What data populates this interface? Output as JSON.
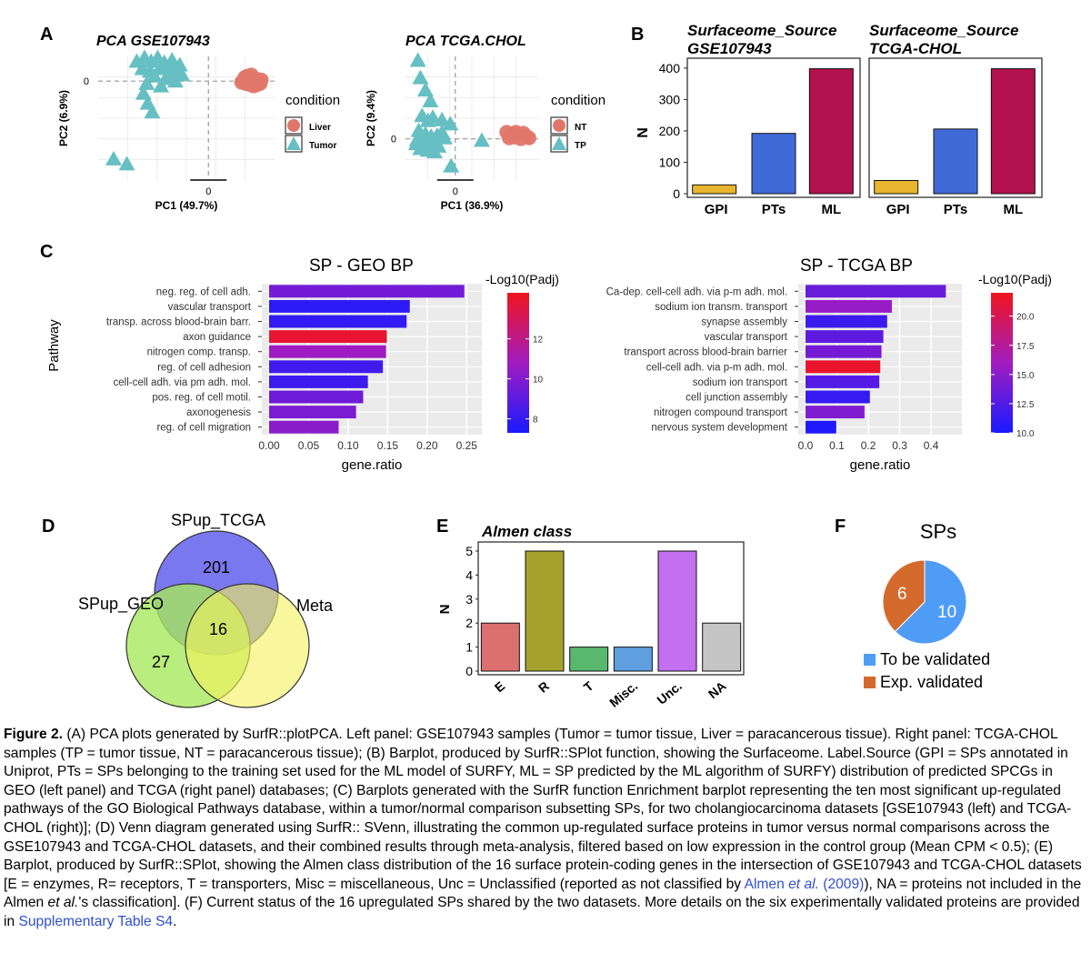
{
  "figure": {
    "panel_labels": [
      "A",
      "B",
      "C",
      "D",
      "E",
      "F"
    ]
  },
  "colors": {
    "liver": "#e0766a",
    "tumor": "#66bfc2",
    "gpi": "#e7b52e",
    "pts": "#3f6ad8",
    "ml": "#b3114e",
    "venn_tcga": "#7a78ee",
    "venn_geo": "#a7e85c",
    "venn_meta": "#f4f15c",
    "alm_e": "#dd6f6f",
    "alm_r": "#a5a12c",
    "alm_t": "#59b86e",
    "alm_misc": "#5f9fe0",
    "alm_unc": "#c46ef0",
    "alm_na": "#c5c5c5",
    "pie_tbv": "#4f9cf6",
    "pie_exp": "#d4692c"
  },
  "chart_data": [
    {
      "id": "pca_geo",
      "type": "scatter",
      "title": "PCA GSE107943",
      "xlabel": "PC1 (49.7%)",
      "ylabel": "PC2 (6.9%)",
      "xticks": [
        "0"
      ],
      "yticks": [
        "0"
      ],
      "xlim": [
        -10,
        6
      ],
      "ylim": [
        -8,
        2
      ],
      "legend_title": "condition",
      "series": [
        {
          "name": "Liver",
          "marker": "circle",
          "points": [
            [
              3.2,
              0.1
            ],
            [
              3.6,
              0.3
            ],
            [
              4.0,
              0.0
            ],
            [
              3.4,
              -0.2
            ],
            [
              3.8,
              -0.3
            ],
            [
              4.3,
              0.2
            ],
            [
              4.6,
              -0.1
            ],
            [
              3.0,
              -0.1
            ],
            [
              4.8,
              0.1
            ],
            [
              3.5,
              0.4
            ],
            [
              4.1,
              -0.4
            ],
            [
              3.9,
              0.5
            ],
            [
              4.4,
              -0.3
            ],
            [
              3.3,
              0.3
            ],
            [
              4.7,
              -0.2
            ]
          ]
        },
        {
          "name": "Tumor",
          "marker": "triangle",
          "points": [
            [
              -6.5,
              1.6
            ],
            [
              -5.8,
              1.9
            ],
            [
              -5.2,
              1.6
            ],
            [
              -4.6,
              1.9
            ],
            [
              -4.0,
              1.5
            ],
            [
              -3.3,
              1.7
            ],
            [
              -6.0,
              1.0
            ],
            [
              -5.3,
              0.8
            ],
            [
              -4.4,
              1.0
            ],
            [
              -3.6,
              0.6
            ],
            [
              -2.9,
              0.9
            ],
            [
              -2.4,
              0.5
            ],
            [
              -4.9,
              0.4
            ],
            [
              -3.9,
              0.2
            ],
            [
              -3.0,
              0.0
            ],
            [
              -5.6,
              -0.2
            ],
            [
              -4.3,
              -0.4
            ],
            [
              -5.9,
              -1.0
            ],
            [
              -5.5,
              -1.8
            ],
            [
              -5.1,
              -2.5
            ],
            [
              -8.6,
              -6.3
            ],
            [
              -7.4,
              -6.7
            ],
            [
              -2.6,
              1.3
            ],
            [
              -3.5,
              1.2
            ]
          ]
        }
      ]
    },
    {
      "id": "pca_tcga",
      "type": "scatter",
      "title": "PCA TCGA.CHOL",
      "xlabel": "PC1 (36.9%)",
      "ylabel": "PC2 (9.4%)",
      "xticks": [
        "0"
      ],
      "yticks": [
        "0"
      ],
      "xlim": [
        -6,
        10
      ],
      "ylim": [
        -5,
        10
      ],
      "legend_title": "condition",
      "series": [
        {
          "name": "NT",
          "marker": "circle",
          "points": [
            [
              6.2,
              0.8
            ],
            [
              6.8,
              0.5
            ],
            [
              7.3,
              0.8
            ],
            [
              7.8,
              0.4
            ],
            [
              8.2,
              0.7
            ],
            [
              6.5,
              0.1
            ],
            [
              7.1,
              0.2
            ],
            [
              7.9,
              0.0
            ],
            [
              8.6,
              0.3
            ],
            [
              8.9,
              0.1
            ]
          ]
        },
        {
          "name": "TP",
          "marker": "triangle",
          "points": [
            [
              -4.5,
              9.5
            ],
            [
              -4.2,
              7.4
            ],
            [
              -3.6,
              5.9
            ],
            [
              -3.0,
              4.6
            ],
            [
              -4.0,
              2.8
            ],
            [
              -3.3,
              2.2
            ],
            [
              -2.7,
              2.6
            ],
            [
              -1.6,
              2.3
            ],
            [
              -0.6,
              1.8
            ],
            [
              -4.4,
              1.0
            ],
            [
              -3.6,
              0.6
            ],
            [
              -2.9,
              0.3
            ],
            [
              -2.2,
              0.4
            ],
            [
              -1.6,
              0.8
            ],
            [
              -4.6,
              -0.1
            ],
            [
              -3.8,
              -0.5
            ],
            [
              -3.0,
              -0.7
            ],
            [
              -2.3,
              -0.4
            ],
            [
              -1.3,
              0.1
            ],
            [
              -4.2,
              -1.2
            ],
            [
              -3.3,
              -1.4
            ],
            [
              -2.5,
              -1.6
            ],
            [
              -0.5,
              -3.3
            ],
            [
              -4.7,
              -0.6
            ],
            [
              3.2,
              -0.2
            ],
            [
              -2.0,
              -0.9
            ]
          ]
        }
      ]
    },
    {
      "id": "surfaceome_geo",
      "type": "bar",
      "title": "Surfaceome_Source GSE107943",
      "title_lines": [
        "Surfaceome_Source",
        "GSE107943"
      ],
      "ylabel": "N",
      "categories": [
        "GPI",
        "PTs",
        "ML"
      ],
      "values": [
        28,
        192,
        398
      ],
      "ylim": [
        0,
        420
      ],
      "yticks": [
        0,
        100,
        200,
        300,
        400
      ]
    },
    {
      "id": "surfaceome_tcga",
      "type": "bar",
      "title": "Surfaceome_Source TCGA-CHOL",
      "title_lines": [
        "Surfaceome_Source",
        "TCGA-CHOL"
      ],
      "ylabel": "N",
      "categories": [
        "GPI",
        "PTs",
        "ML"
      ],
      "values": [
        42,
        206,
        398
      ],
      "ylim": [
        0,
        420
      ],
      "yticks": [
        0,
        100,
        200,
        300,
        400
      ]
    },
    {
      "id": "geo_bp",
      "type": "bar",
      "orientation": "horizontal",
      "title": "SP - GEO BP",
      "xlabel": "gene.ratio",
      "ylabel": "Pathway",
      "categories": [
        "neg. reg. of cell adh.",
        "vascular transport",
        "transp. across blood-brain barr.",
        "axon guidance",
        "nitrogen comp. transp.",
        "reg. of cell adhesion",
        "cell-cell adh. via pm adh. mol.",
        "pos. reg. of cell motil.",
        "axonogenesis",
        "reg. of cell migration"
      ],
      "values": [
        0.247,
        0.178,
        0.174,
        0.149,
        0.148,
        0.144,
        0.125,
        0.119,
        0.11,
        0.088
      ],
      "padj_log10": [
        9.6,
        7.8,
        7.9,
        13.9,
        10.7,
        8.3,
        8.2,
        9.5,
        9.8,
        10.2
      ],
      "xlim": [
        0,
        0.26
      ],
      "xticks": [
        "0.00",
        "0.05",
        "0.10",
        "0.15",
        "0.20",
        "0.25"
      ],
      "colorbar_title": "-Log10(Padj)",
      "colorbar_ticks": [
        "12",
        "10",
        "8"
      ],
      "colorbar_range": [
        7.3,
        14.3
      ]
    },
    {
      "id": "tcga_bp",
      "type": "bar",
      "orientation": "horizontal",
      "title": "SP - TCGA BP",
      "xlabel": "gene.ratio",
      "categories": [
        "Ca-dep. cell-cell adh. via p-m adh. mol.",
        "sodium ion transm. transport",
        "synapse assembly",
        "vascular transport",
        "transport across blood-brain barrier",
        "cell-cell adh. via p-m adh. mol.",
        "sodium ion transport",
        "cell junction assembly",
        "nitrogen compound transport",
        "nervous system development"
      ],
      "values": [
        0.447,
        0.275,
        0.26,
        0.248,
        0.242,
        0.238,
        0.235,
        0.205,
        0.188,
        0.098
      ],
      "padj_log10": [
        13.5,
        15.5,
        11.5,
        13.0,
        14.0,
        21.5,
        12.5,
        11.2,
        14.5,
        10.3
      ],
      "xlim": [
        0,
        0.475
      ],
      "xticks": [
        "0.0",
        "0.1",
        "0.2",
        "0.3",
        "0.4"
      ],
      "colorbar_title": "-Log10(Padj)",
      "colorbar_ticks": [
        "20.0",
        "17.5",
        "15.0",
        "12.5",
        "10.0"
      ],
      "colorbar_range": [
        10.0,
        22.0
      ]
    },
    {
      "id": "venn",
      "type": "venn",
      "sets": [
        "SPup_TCGA",
        "SPup_GEO",
        "Meta"
      ],
      "regions": [
        {
          "sets": [
            "SPup_TCGA"
          ],
          "value": "201"
        },
        {
          "sets": [
            "SPup_GEO"
          ],
          "value": "27"
        },
        {
          "sets": [
            "SPup_TCGA",
            "SPup_GEO",
            "Meta"
          ],
          "value": "16"
        }
      ]
    },
    {
      "id": "almen",
      "type": "bar",
      "title": "Almen class",
      "ylabel": "N",
      "categories": [
        "E",
        "R",
        "T",
        "Misc.",
        "Unc.",
        "NA"
      ],
      "values": [
        2,
        5,
        1,
        1,
        5,
        2
      ],
      "ylim": [
        0,
        5.2
      ],
      "yticks": [
        0,
        1,
        2,
        3,
        4,
        5
      ]
    },
    {
      "id": "sps_pie",
      "type": "pie",
      "title": "SPs",
      "labels": [
        "To be validated",
        "Exp. validated"
      ],
      "values": [
        10,
        6
      ],
      "value_labels": [
        "10",
        "6"
      ]
    }
  ],
  "caption": {
    "label": "Figure 2.",
    "part1": " (A) PCA plots generated by SurfR::plotPCA. Left panel: GSE107943 samples (Tumor = tumor tissue, Liver = paracancerous tissue). Right panel: TCGA-CHOL samples (TP = tumor tissue, NT = paracancerous tissue); (B) Barplot, produced by SurfR::SPlot function, showing the Surfaceome. Label.Source (GPI = SPs annotated in Uniprot, PTs = SPs belonging to the training set used for the ML model of SURFY, ML = SP predicted by the ML algorithm of SURFY) distribution of predicted SPCGs in GEO (left panel) and TCGA (right panel) databases; (C) Barplots generated with the SurfR function Enrichment barplot representing the ten most significant up-regulated pathways of the GO Biological Pathways database, within a tumor/normal comparison subsetting SPs, for two cholangiocarcinoma datasets [GSE107943 (left) and TCGA-CHOL (right)]; (D) Venn diagram generated using SurfR:: SVenn, illustrating the common up-regulated surface proteins in tumor versus normal comparisons across the GSE107943 and TCGA-CHOL datasets, and their combined results through meta-analysis, filtered based on low expression in the control group (Mean CPM < 0.5); (E) Barplot, produced by SurfR::SPlot, showing the Almen class distribution of the 16 surface protein-coding genes in the intersection of GSE107943 and TCGA-CHOL datasets [E = enzymes, R= receptors, T = transporters, Misc = miscellaneous, Unc = Unclassified (reported as not classified by ",
    "link1_a": "Almen ",
    "link1_b": "et al.",
    "link1_c": " (2009)",
    "part2": "), NA = proteins not included in the Almen ",
    "part2_italic": "et al.",
    "part3": "'s classification]. (F) Current status of the 16 upregulated SPs shared by the two datasets. More details on the six experimentally validated proteins are provided in ",
    "link2": "Supplementary Table S4",
    "part4": "."
  }
}
